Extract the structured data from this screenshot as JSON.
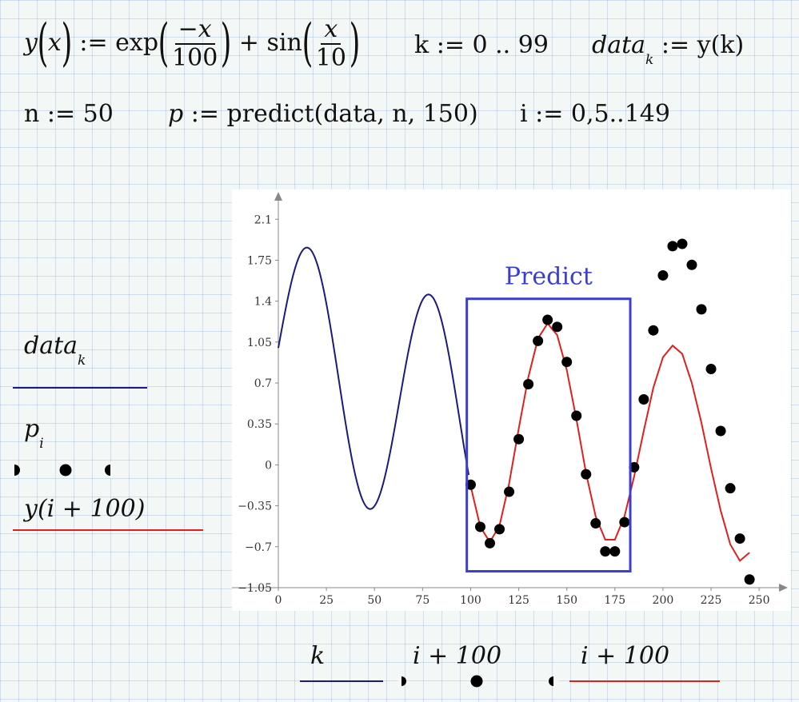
{
  "definitions": {
    "y_lhs": "y",
    "y_arg": "x",
    "assign": ":=",
    "exp_fn": "exp",
    "exp_num": "−x",
    "exp_den": "100",
    "plus": "+",
    "sin_fn": "sin",
    "sin_num": "x",
    "sin_den": "10",
    "k_def": "k := 0 .. 99",
    "data_name": "data",
    "data_sub": "k",
    "data_rhs": ":= y(k)",
    "n_def": "n := 50",
    "p_name": "p",
    "p_rhs": ":= predict(data, n, 150)",
    "i_def": "i := 0,5..149"
  },
  "legend_left": {
    "data_name": "data",
    "data_sub": "k",
    "p_name": "p",
    "p_sub": "i",
    "y_label": "y(i + 100)"
  },
  "x_axis_labels": {
    "k": "k",
    "i1": "i + 100",
    "i2": "i + 100"
  },
  "colors": {
    "data_line": "#1a1a80",
    "prediction_marker": "#000000",
    "y_line": "#e0201c",
    "annotation": "#3a3fd0"
  },
  "chart_data": {
    "type": "line",
    "title": "",
    "xlim": [
      0,
      262
    ],
    "ylim": [
      -1.05,
      2.3
    ],
    "x_ticks": [
      "0",
      "25",
      "50",
      "75",
      "100",
      "125",
      "150",
      "175",
      "200",
      "225",
      "250"
    ],
    "y_ticks": [
      "2.1",
      "1.75",
      "1.4",
      "1.05",
      "0.7",
      "0.35",
      "0",
      "−0.35",
      "−0.7",
      "−1.05"
    ],
    "annotation": {
      "text": "Predict",
      "box_x": [
        98,
        183
      ],
      "box_y": [
        -0.91,
        1.42
      ]
    },
    "series": [
      {
        "name": "data_k",
        "style": "line",
        "function": "exp(-x/100) + sin(x/10)",
        "x_range": [
          0,
          99
        ]
      },
      {
        "name": "p_i",
        "style": "markers",
        "x": [
          100,
          105,
          110,
          115,
          120,
          125,
          130,
          135,
          140,
          145,
          150,
          155,
          160,
          165,
          170,
          175,
          180,
          185,
          190,
          195,
          200,
          205,
          210,
          215,
          220,
          225,
          230,
          235,
          240,
          245
        ],
        "y": [
          -0.17,
          -0.53,
          -0.67,
          -0.55,
          -0.23,
          0.22,
          0.69,
          1.06,
          1.24,
          1.18,
          0.88,
          0.42,
          -0.08,
          -0.5,
          -0.74,
          -0.74,
          -0.49,
          -0.02,
          0.56,
          1.15,
          1.62,
          1.87,
          1.89,
          1.71,
          1.33,
          0.82,
          0.29,
          -0.2,
          -0.63,
          -0.98
        ]
      },
      {
        "name": "y(i+100)",
        "style": "line",
        "function": "exp(-(i+100)/100) + sin((i+100)/10)",
        "x": [
          100,
          105,
          110,
          115,
          120,
          125,
          130,
          135,
          140,
          145,
          150,
          155,
          160,
          165,
          170,
          175,
          180,
          185,
          190,
          195,
          200,
          205,
          210,
          215,
          220,
          225,
          230,
          235,
          240,
          245
        ],
        "y": [
          -0.18,
          -0.53,
          -0.66,
          -0.52,
          -0.16,
          0.31,
          0.75,
          1.08,
          1.21,
          1.11,
          0.81,
          0.39,
          -0.07,
          -0.44,
          -0.64,
          -0.64,
          -0.44,
          -0.1,
          0.29,
          0.66,
          0.92,
          1.02,
          0.95,
          0.7,
          0.36,
          -0.03,
          -0.39,
          -0.68,
          -0.82,
          -0.75
        ]
      }
    ]
  }
}
